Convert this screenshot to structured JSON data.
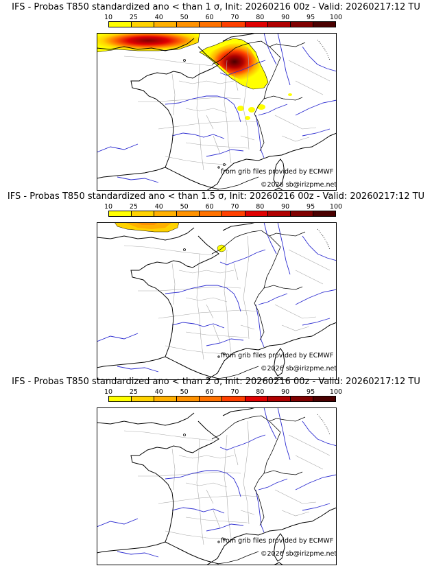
{
  "colorbar": {
    "ticks": [
      "10",
      "25",
      "40",
      "50",
      "60",
      "70",
      "80",
      "90",
      "95",
      "100"
    ],
    "colors": [
      "#ffff00",
      "#ffd300",
      "#ffb000",
      "#ff9200",
      "#ff7200",
      "#ff4000",
      "#e00000",
      "#b00000",
      "#800000",
      "#4a0000"
    ]
  },
  "panels": [
    {
      "title": "IFS - Probas T850  standardized ano < than 1 σ, Init: 20260216 00z - Valid: 20260217:12 TU",
      "source_credit": "from grib files provided by ECMWF",
      "copyright": "©2026 sb@irizpme.net"
    },
    {
      "title": "IFS - Probas T850  standardized ano < than 1.5 σ, Init: 20260216 00z - Valid: 20260217:12 TU",
      "source_credit": "from grib files provided by ECMWF",
      "copyright": "©2026 sb@irizpme.net"
    },
    {
      "title": "IFS - Probas T850  standardized ano < than 2 σ, Init: 20260216 00z - Valid: 20260217:12 TU",
      "source_credit": "from grib files provided by ECMWF",
      "copyright": "©2026 sb@irizpme.net"
    }
  ]
}
